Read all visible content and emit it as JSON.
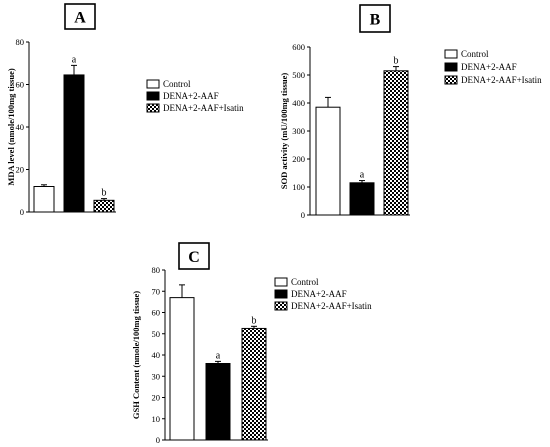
{
  "patterns": {
    "control": "#ffffff",
    "dena": "#000000",
    "isatin": "checker"
  },
  "chart_data": [
    {
      "panel": "A",
      "type": "bar",
      "categories": [
        "Control",
        "DENA+2-AAF",
        "DENA+2-AAF+Isatin"
      ],
      "values": [
        12,
        64.5,
        5.5
      ],
      "errors": [
        0.8,
        4.5,
        0.8
      ],
      "annotations": [
        "",
        "a",
        "b"
      ],
      "ylabel": "MDA level (nmole/100mg tissue)",
      "ylim": [
        0,
        80
      ],
      "yticks": [
        0,
        20,
        40,
        60,
        80
      ],
      "legend": [
        "Control",
        "DENA+2-AAF",
        "DENA+2-AAF+Isatin"
      ]
    },
    {
      "panel": "B",
      "type": "bar",
      "categories": [
        "Control",
        "DENA+2-AAF",
        "DENA+2-AAF+Isatin"
      ],
      "values": [
        385,
        115,
        515
      ],
      "errors": [
        35,
        8,
        15
      ],
      "annotations": [
        "",
        "a",
        "b"
      ],
      "ylabel": "SOD activity (mU/100mg tissue)",
      "ylim": [
        0,
        600
      ],
      "yticks": [
        0,
        100,
        200,
        300,
        400,
        500,
        600
      ],
      "legend": [
        "Control",
        "DENA+2-AAF",
        "DENA+2-AAF+Isatin"
      ]
    },
    {
      "panel": "C",
      "type": "bar",
      "categories": [
        "Control",
        "DENA+2-AAF",
        "DENA+2-AAF+Isatin"
      ],
      "values": [
        67,
        36,
        52.5
      ],
      "errors": [
        6,
        1,
        1
      ],
      "annotations": [
        "",
        "a",
        "b"
      ],
      "ylabel": "GSH Content (nmole/100mg tissue)",
      "ylim": [
        0,
        80
      ],
      "yticks": [
        0,
        10,
        20,
        30,
        40,
        50,
        60,
        70,
        80
      ],
      "legend": [
        "Control",
        "DENA+2-AAF",
        "DENA+2-AAF+Isatin"
      ]
    }
  ]
}
